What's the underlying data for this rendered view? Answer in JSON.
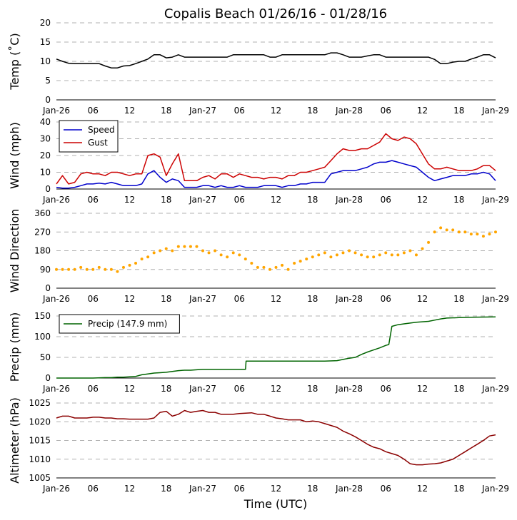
{
  "title": "Copalis Beach 01/26/16 - 01/28/16",
  "xlabel": "Time (UTC)",
  "x_tick_labels": [
    "Jan-26",
    "06",
    "12",
    "18",
    "Jan-27",
    "06",
    "12",
    "18",
    "Jan-28",
    "06",
    "12",
    "18",
    "Jan-29"
  ],
  "x_range_hours": [
    0,
    72
  ],
  "colors": {
    "temp": "#000000",
    "speed": "#0000cc",
    "gust": "#cc0000",
    "direction": "#ffa500",
    "precip": "#006400",
    "altimeter": "#8b0000"
  },
  "chart_data": [
    {
      "type": "line",
      "ylabel": "Temp (˚C)",
      "ylim": [
        0,
        20
      ],
      "yticks": [
        0,
        5,
        10,
        15,
        20
      ],
      "grid": true,
      "series": [
        {
          "key": "temp",
          "x": [
            0,
            1,
            2,
            3,
            4,
            5,
            6,
            7,
            8,
            9,
            10,
            11,
            12,
            13,
            14,
            15,
            16,
            17,
            18,
            19,
            20,
            21,
            22,
            23,
            24,
            25,
            26,
            27,
            28,
            29,
            30,
            31,
            32,
            33,
            34,
            35,
            36,
            37,
            38,
            39,
            40,
            41,
            42,
            43,
            44,
            45,
            46,
            47,
            48,
            49,
            50,
            51,
            52,
            53,
            54,
            55,
            56,
            57,
            58,
            59,
            60,
            61,
            62,
            63,
            64,
            65,
            66,
            67,
            68,
            69,
            70,
            71,
            72
          ],
          "y": [
            10.6,
            10,
            9.5,
            9.4,
            9.4,
            9.4,
            9.4,
            9.4,
            8.8,
            8.3,
            8.3,
            8.8,
            8.9,
            9.4,
            10,
            10.6,
            11.7,
            11.7,
            10.9,
            11.1,
            11.7,
            11.1,
            11.1,
            11.1,
            11.1,
            11.1,
            11.1,
            11.1,
            11.1,
            11.7,
            11.7,
            11.7,
            11.7,
            11.7,
            11.7,
            11.1,
            11.1,
            11.7,
            11.7,
            11.7,
            11.7,
            11.7,
            11.7,
            11.7,
            11.7,
            12.2,
            12.2,
            11.7,
            11.1,
            11.1,
            11.1,
            11.4,
            11.7,
            11.7,
            11.1,
            11.1,
            11.1,
            11.1,
            11.1,
            11.1,
            11.1,
            11.1,
            10.5,
            9.4,
            9.4,
            9.8,
            10,
            10,
            10.6,
            11.1,
            11.7,
            11.7,
            10.9
          ]
        }
      ]
    },
    {
      "type": "line",
      "ylabel": "Wind (mph)",
      "ylim": [
        0,
        40
      ],
      "yticks": [
        0,
        10,
        20,
        30,
        40
      ],
      "grid": true,
      "legend": "top-left",
      "series": [
        {
          "name": "Speed",
          "key": "speed",
          "x": [
            0,
            1,
            2,
            3,
            4,
            5,
            6,
            7,
            8,
            9,
            10,
            11,
            12,
            13,
            14,
            15,
            16,
            17,
            18,
            19,
            20,
            21,
            22,
            23,
            24,
            25,
            26,
            27,
            28,
            29,
            30,
            31,
            32,
            33,
            34,
            35,
            36,
            37,
            38,
            39,
            40,
            41,
            42,
            43,
            44,
            45,
            46,
            47,
            48,
            49,
            50,
            51,
            52,
            53,
            54,
            55,
            56,
            57,
            58,
            59,
            60,
            61,
            62,
            63,
            64,
            65,
            66,
            67,
            68,
            69,
            70,
            71,
            72
          ],
          "y": [
            1,
            0.5,
            0.5,
            1,
            2,
            3,
            3,
            3.5,
            3,
            4,
            3,
            2,
            2,
            2,
            3,
            9,
            11,
            7,
            4,
            6,
            5,
            1,
            1,
            1,
            2,
            2,
            1,
            2,
            1,
            1,
            2,
            1,
            1,
            1,
            2,
            2,
            2,
            1,
            2,
            2,
            3,
            3,
            4,
            4,
            4,
            9,
            10,
            11,
            11,
            11,
            12,
            13,
            15,
            16,
            16,
            17,
            16,
            15,
            14,
            13,
            10,
            7,
            5,
            6,
            7,
            8,
            8,
            8,
            9,
            9,
            10,
            9,
            5
          ]
        },
        {
          "name": "Gust",
          "key": "gust",
          "x": [
            0,
            1,
            2,
            3,
            4,
            5,
            6,
            7,
            8,
            9,
            10,
            11,
            12,
            13,
            14,
            15,
            16,
            17,
            18,
            19,
            20,
            21,
            22,
            23,
            24,
            25,
            26,
            27,
            28,
            29,
            30,
            31,
            32,
            33,
            34,
            35,
            36,
            37,
            38,
            39,
            40,
            41,
            42,
            43,
            44,
            45,
            46,
            47,
            48,
            49,
            50,
            51,
            52,
            53,
            54,
            55,
            56,
            57,
            58,
            59,
            60,
            61,
            62,
            63,
            64,
            65,
            66,
            67,
            68,
            69,
            70,
            71,
            72
          ],
          "y": [
            3,
            8,
            3,
            4,
            9,
            10,
            9,
            9,
            8,
            10,
            10,
            9,
            8,
            9,
            9,
            20,
            21,
            19,
            8,
            15,
            21,
            5,
            5,
            5,
            7,
            8,
            6,
            9,
            9,
            7,
            9,
            8,
            7,
            7,
            6,
            7,
            7,
            6,
            8,
            8,
            10,
            10,
            11,
            12,
            13,
            17,
            21,
            24,
            23,
            23,
            24,
            24,
            26,
            28,
            33,
            30,
            29,
            31,
            30,
            27,
            21,
            15,
            12,
            12,
            13,
            12,
            11,
            11,
            11,
            12,
            14,
            14,
            11
          ]
        }
      ]
    },
    {
      "type": "scatter",
      "ylabel": "Wind Direction",
      "ylim": [
        0,
        360
      ],
      "yticks": [
        0,
        90,
        180,
        270,
        360
      ],
      "grid": true,
      "series": [
        {
          "key": "direction",
          "x": [
            0,
            1,
            2,
            3,
            4,
            5,
            6,
            7,
            8,
            9,
            10,
            11,
            12,
            13,
            14,
            15,
            16,
            17,
            18,
            19,
            20,
            21,
            22,
            23,
            24,
            25,
            26,
            27,
            28,
            29,
            30,
            31,
            32,
            33,
            34,
            35,
            36,
            37,
            38,
            39,
            40,
            41,
            42,
            43,
            44,
            45,
            46,
            47,
            48,
            49,
            50,
            51,
            52,
            53,
            54,
            55,
            56,
            57,
            58,
            59,
            60,
            61,
            62,
            63,
            64,
            65,
            66,
            67,
            68,
            69,
            70,
            71,
            72
          ],
          "y": [
            90,
            90,
            90,
            90,
            100,
            90,
            90,
            100,
            90,
            90,
            80,
            100,
            110,
            120,
            140,
            150,
            170,
            180,
            190,
            180,
            200,
            200,
            200,
            200,
            180,
            170,
            180,
            160,
            150,
            170,
            160,
            140,
            120,
            100,
            100,
            90,
            100,
            110,
            90,
            120,
            130,
            140,
            150,
            160,
            170,
            150,
            160,
            170,
            180,
            170,
            160,
            150,
            150,
            160,
            170,
            160,
            160,
            170,
            180,
            160,
            190,
            220,
            270,
            290,
            280,
            280,
            270,
            270,
            260,
            260,
            250,
            260,
            270
          ]
        }
      ]
    },
    {
      "type": "line",
      "ylabel": "Precip (mm)",
      "ylim": [
        0,
        150
      ],
      "yticks": [
        0,
        50,
        100,
        150
      ],
      "grid": true,
      "legend": "top-left",
      "series": [
        {
          "name": "Precip (147.9 mm)",
          "key": "precip",
          "x": [
            0,
            4,
            6,
            8,
            9,
            10,
            11,
            12,
            13,
            14,
            15,
            16,
            17,
            18,
            19,
            20,
            21,
            22,
            24,
            28,
            30,
            31,
            31.1,
            34,
            36,
            40,
            44,
            46,
            47,
            48,
            49,
            50,
            51,
            52,
            53,
            54,
            54.5,
            55,
            56,
            57,
            58,
            59,
            60,
            61,
            62,
            63,
            64,
            66,
            68,
            72
          ],
          "y": [
            0,
            0,
            0,
            1,
            1,
            2,
            2,
            3,
            4,
            8,
            10,
            12,
            13,
            14,
            16,
            18,
            19,
            19,
            21,
            21,
            21,
            21,
            41,
            41,
            41,
            41,
            41,
            42,
            45,
            48,
            50,
            57,
            63,
            68,
            73,
            79,
            81,
            125,
            129,
            131,
            133,
            135,
            136,
            137,
            140,
            143,
            145,
            146,
            147,
            147.9
          ]
        }
      ]
    },
    {
      "type": "line",
      "ylabel": "Altimeter (hPa)",
      "ylim": [
        1005,
        1025
      ],
      "yticks": [
        1005,
        1010,
        1015,
        1020,
        1025
      ],
      "grid": true,
      "series": [
        {
          "key": "altimeter",
          "x": [
            0,
            1,
            2,
            3,
            4,
            5,
            6,
            7,
            8,
            9,
            10,
            11,
            12,
            13,
            14,
            15,
            16,
            17,
            18,
            19,
            20,
            21,
            22,
            23,
            24,
            25,
            26,
            27,
            28,
            29,
            30,
            31,
            32,
            33,
            34,
            35,
            36,
            37,
            38,
            39,
            40,
            41,
            42,
            43,
            44,
            45,
            46,
            47,
            48,
            49,
            50,
            51,
            52,
            53,
            54,
            55,
            56,
            57,
            58,
            59,
            60,
            61,
            62,
            63,
            64,
            65,
            66,
            67,
            68,
            69,
            70,
            71,
            72
          ],
          "y": [
            1021,
            1021.5,
            1021.5,
            1021,
            1021,
            1021,
            1021.2,
            1021.2,
            1021,
            1021,
            1020.8,
            1020.8,
            1020.7,
            1020.7,
            1020.7,
            1020.7,
            1021,
            1022.5,
            1022.8,
            1021.5,
            1022,
            1023,
            1022.5,
            1022.8,
            1023,
            1022.5,
            1022.5,
            1022,
            1022,
            1022,
            1022.2,
            1022.3,
            1022.4,
            1022,
            1022,
            1021.5,
            1021,
            1020.8,
            1020.5,
            1020.5,
            1020.5,
            1020,
            1020.2,
            1020,
            1019.5,
            1019,
            1018.5,
            1017.5,
            1016.8,
            1016,
            1015,
            1014,
            1013.2,
            1012.8,
            1012,
            1011.5,
            1011,
            1010,
            1008.8,
            1008.5,
            1008.5,
            1008.7,
            1008.8,
            1009,
            1009.5,
            1010,
            1011,
            1012,
            1013,
            1014,
            1015,
            1016.2,
            1016.5
          ]
        }
      ]
    }
  ]
}
